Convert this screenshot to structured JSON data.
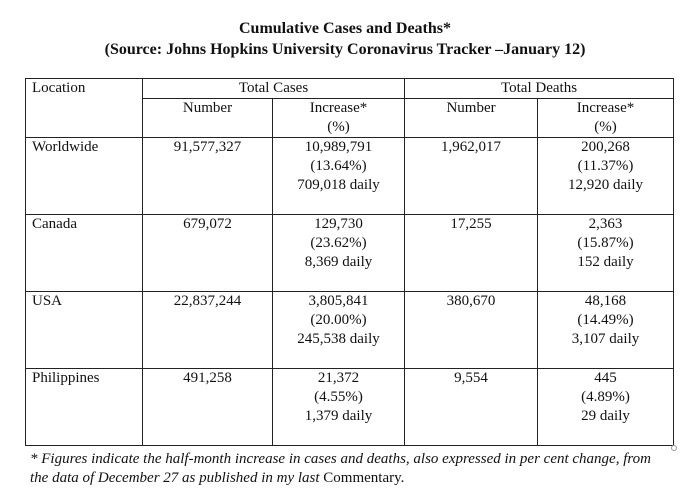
{
  "title": {
    "line1": "Cumulative Cases and Deaths*",
    "line2": "(Source: Johns Hopkins University Coronavirus Tracker –January 12)"
  },
  "table": {
    "location_header": "Location",
    "cases_header": "Total Cases",
    "deaths_header": "Total Deaths",
    "number_header": "Number",
    "increase_header_line1": "Increase*",
    "increase_header_line2": "(%)",
    "rows": [
      {
        "location": "Worldwide",
        "cases_number": "91,577,327",
        "cases_increase": "10,989,791",
        "cases_pct": "(13.64%)",
        "cases_daily": "709,018 daily",
        "deaths_number": "1,962,017",
        "deaths_increase": "200,268",
        "deaths_pct": "(11.37%)",
        "deaths_daily": "12,920 daily"
      },
      {
        "location": "Canada",
        "cases_number": "679,072",
        "cases_increase": "129,730",
        "cases_pct": "(23.62%)",
        "cases_daily": "8,369 daily",
        "deaths_number": "17,255",
        "deaths_increase": "2,363",
        "deaths_pct": "(15.87%)",
        "deaths_daily": "152 daily"
      },
      {
        "location": "USA",
        "cases_number": "22,837,244",
        "cases_increase": "3,805,841",
        "cases_pct": "(20.00%)",
        "cases_daily": "245,538 daily",
        "deaths_number": "380,670",
        "deaths_increase": "48,168",
        "deaths_pct": "(14.49%)",
        "deaths_daily": "3,107 daily"
      },
      {
        "location": "Philippines",
        "cases_number": "491,258",
        "cases_increase": "21,372",
        "cases_pct": "(4.55%)",
        "cases_daily": "1,379 daily",
        "deaths_number": "9,554",
        "deaths_increase": "445",
        "deaths_pct": "(4.89%)",
        "deaths_daily": "29 daily"
      }
    ]
  },
  "footnote": {
    "italic_text": "* Figures indicate the half-month increase in cases and deaths, also expressed in per cent change, from the data of December 27 as published in my last ",
    "plain_text": "Commentary."
  }
}
